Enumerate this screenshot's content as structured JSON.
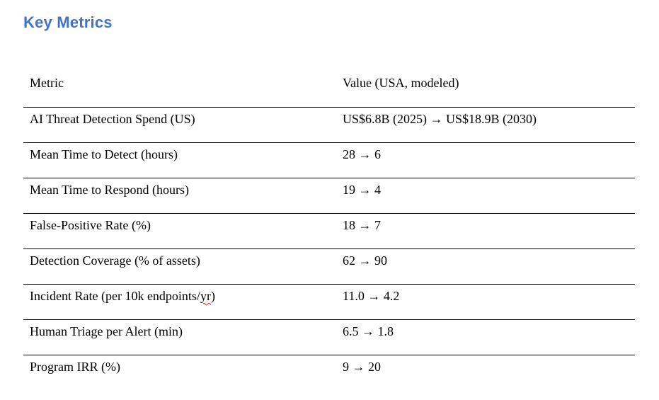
{
  "page": {
    "title": "Key Metrics",
    "title_color": "#4472C4",
    "spellcheck_color": "#d0312d",
    "border_color": "#000000"
  },
  "table": {
    "headers": {
      "metric": "Metric",
      "value": "Value (USA, modeled)"
    },
    "rows": [
      {
        "metric_parts": [
          {
            "text": "AI Threat Detection Spend (US)"
          }
        ],
        "value": "US$6.8B (2025) → US$18.9B (2030)"
      },
      {
        "metric_parts": [
          {
            "text": "Mean Time to Detect (hours)"
          }
        ],
        "value": "28 → 6"
      },
      {
        "metric_parts": [
          {
            "text": "Mean Time to Respond (hours)"
          }
        ],
        "value": "19 → 4"
      },
      {
        "metric_parts": [
          {
            "text": "False-Positive Rate (%)"
          }
        ],
        "value": "18 → 7"
      },
      {
        "metric_parts": [
          {
            "text": "Detection Coverage (% of assets)"
          }
        ],
        "value": "62 → 90"
      },
      {
        "metric_parts": [
          {
            "text": "Incident Rate (per 10k endpoints/"
          },
          {
            "text": "yr",
            "spellcheck": true
          },
          {
            "text": ")"
          }
        ],
        "value": "11.0 → 4.2"
      },
      {
        "metric_parts": [
          {
            "text": "Human Triage per Alert (min)"
          }
        ],
        "value": "6.5 → 1.8"
      },
      {
        "metric_parts": [
          {
            "text": "Program IRR (%)"
          }
        ],
        "value": "9 → 20"
      }
    ]
  }
}
